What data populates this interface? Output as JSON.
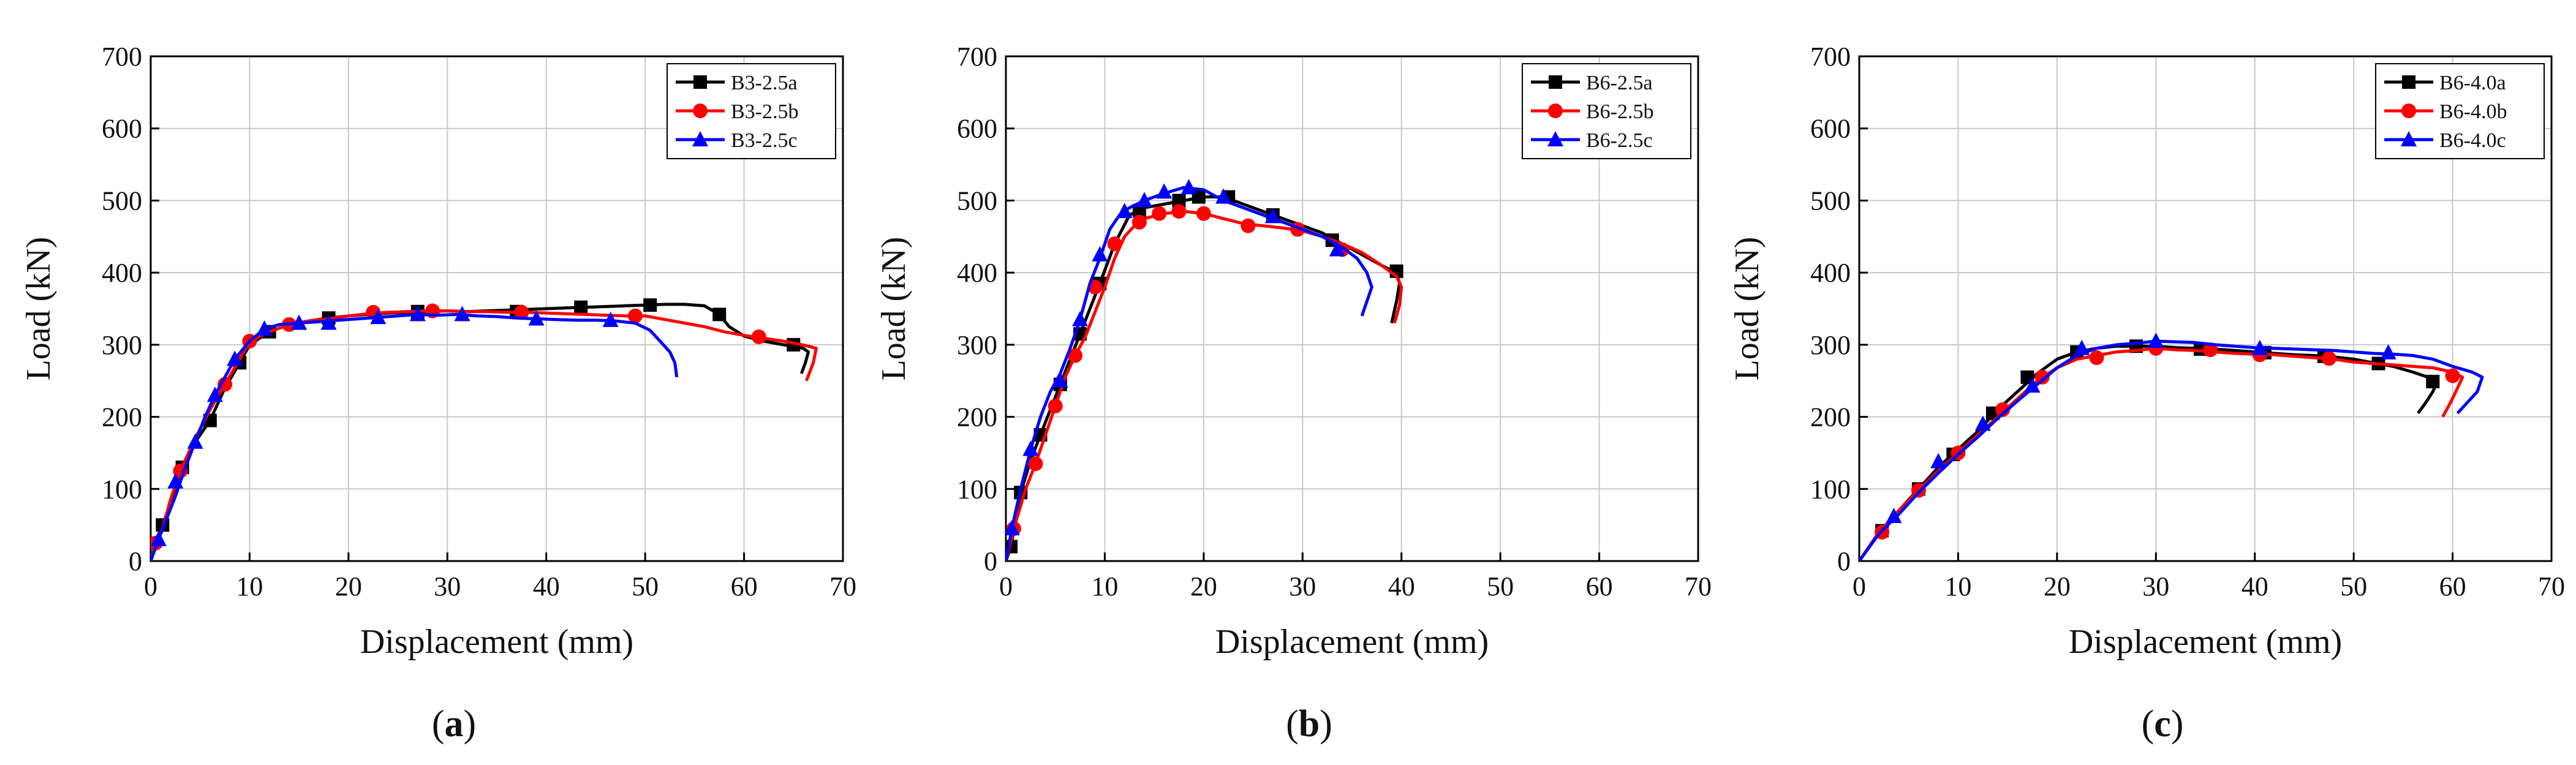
{
  "chart_data": [
    {
      "type": "line",
      "panel": "(a)",
      "panel_letter": "a",
      "xlabel": "Displacement (mm)",
      "ylabel": "Load (kN)",
      "xlim": [
        0,
        70
      ],
      "ylim": [
        0,
        700
      ],
      "xticks": [
        0,
        10,
        20,
        30,
        40,
        50,
        60,
        70
      ],
      "yticks": [
        0,
        100,
        200,
        300,
        400,
        500,
        600,
        700
      ],
      "grid": true,
      "legend_position": "top-right",
      "series": [
        {
          "name": "B3-2.5a",
          "color": "#000000",
          "marker": "square",
          "x": [
            0,
            0.5,
            1.2,
            2,
            3.2,
            4.5,
            6,
            7.5,
            9,
            10,
            12,
            14,
            16,
            18,
            20,
            22,
            24,
            26,
            28,
            30,
            32,
            34,
            36,
            38,
            40,
            42,
            44,
            46,
            48,
            50,
            52,
            54,
            56,
            57.5,
            58.5,
            60,
            62,
            64,
            65,
            66,
            66.5,
            66.2,
            65.8
          ],
          "y": [
            0,
            25,
            50,
            80,
            130,
            165,
            195,
            240,
            275,
            300,
            318,
            328,
            333,
            337,
            340,
            342,
            344,
            345,
            346,
            347,
            346,
            347,
            348,
            349,
            350,
            351,
            352,
            353,
            354,
            355,
            356,
            356,
            354,
            342,
            325,
            312,
            305,
            300,
            298,
            295,
            290,
            275,
            260
          ],
          "markers_x": [
            1.2,
            3.2,
            6,
            9,
            12,
            18,
            27,
            37,
            43.5,
            50.5,
            57.5,
            65
          ],
          "markers_y": [
            50,
            130,
            195,
            275,
            318,
            337,
            346,
            346,
            352,
            355,
            342,
            300
          ]
        },
        {
          "name": "B3-2.5b",
          "color": "#ff0000",
          "marker": "circle",
          "x": [
            0,
            0.5,
            1.2,
            2,
            3,
            4.5,
            6,
            7.5,
            9,
            10,
            12,
            14,
            16,
            18,
            20,
            22,
            24,
            26,
            28,
            30,
            32,
            34,
            36,
            38,
            40,
            42,
            44,
            46,
            48,
            50,
            52,
            54,
            56,
            58,
            60,
            62,
            64,
            65.5,
            66.5,
            67.3,
            67,
            66.3
          ],
          "y": [
            0,
            25,
            45,
            85,
            125,
            170,
            210,
            245,
            280,
            305,
            318,
            328,
            333,
            336,
            340,
            343,
            345,
            346,
            347,
            347,
            346,
            346,
            345,
            345,
            344,
            343,
            342,
            341,
            340,
            340,
            335,
            330,
            325,
            318,
            313,
            309,
            305,
            301,
            298,
            295,
            275,
            250
          ],
          "markers_x": [
            0.5,
            3,
            7.5,
            10,
            14,
            22.5,
            28.5,
            37.5,
            49,
            61.5
          ],
          "markers_y": [
            25,
            125,
            245,
            305,
            328,
            345,
            347,
            345,
            340,
            311
          ]
        },
        {
          "name": "B3-2.5c",
          "color": "#0000ff",
          "marker": "triangle",
          "x": [
            0,
            0.8,
            1.5,
            2.5,
            3.5,
            4.5,
            5.5,
            6.5,
            7.5,
            8.5,
            10,
            11.5,
            13,
            15,
            17,
            19,
            21,
            23,
            25,
            27,
            29,
            31,
            33,
            35,
            37,
            39,
            41,
            43,
            45,
            47,
            49,
            50.5,
            51.5,
            52.5,
            53,
            53.2
          ],
          "y": [
            0,
            30,
            55,
            90,
            130,
            165,
            200,
            230,
            255,
            280,
            305,
            322,
            328,
            330,
            332,
            334,
            336,
            338,
            340,
            342,
            341,
            342,
            340,
            339,
            337,
            336,
            335,
            334,
            334,
            333,
            330,
            320,
            305,
            290,
            275,
            255
          ],
          "markers_x": [
            0.8,
            2.5,
            4.5,
            6.5,
            8.5,
            11.5,
            15,
            18,
            23,
            27,
            31.5,
            39,
            46.5
          ],
          "markers_y": [
            30,
            110,
            165,
            230,
            280,
            322,
            330,
            330,
            338,
            342,
            342,
            336,
            334
          ]
        }
      ]
    },
    {
      "type": "line",
      "panel": "(b)",
      "panel_letter": "b",
      "xlabel": "Displacement (mm)",
      "ylabel": "Load (kN)",
      "xlim": [
        0,
        70
      ],
      "ylim": [
        0,
        700
      ],
      "xticks": [
        0,
        10,
        20,
        30,
        40,
        50,
        60,
        70
      ],
      "yticks": [
        0,
        100,
        200,
        300,
        400,
        500,
        600,
        700
      ],
      "grid": true,
      "legend_position": "top-right",
      "series": [
        {
          "name": "B6-2.5a",
          "color": "#000000",
          "marker": "square",
          "x": [
            0,
            0.5,
            1.5,
            2.5,
            3.5,
            4.5,
            5.5,
            6.5,
            7.5,
            8.5,
            9.5,
            11,
            12.5,
            14,
            16,
            18,
            20,
            22,
            24,
            26,
            28,
            30,
            32,
            34,
            36,
            38,
            39.5,
            39.8,
            39.5,
            39
          ],
          "y": [
            0,
            20,
            95,
            140,
            175,
            210,
            245,
            280,
            315,
            350,
            385,
            440,
            480,
            490,
            495,
            500,
            505,
            505,
            495,
            485,
            475,
            465,
            455,
            440,
            425,
            410,
            400,
            385,
            360,
            330
          ],
          "markers_x": [
            0.5,
            1.5,
            3.5,
            5.5,
            7.5,
            9.5,
            13.5,
            17.5,
            19.5,
            22.5,
            27,
            33,
            39.5
          ],
          "markers_y": [
            20,
            95,
            175,
            245,
            315,
            385,
            486,
            500,
            505,
            505,
            480,
            445,
            402
          ]
        },
        {
          "name": "B6-2.5b",
          "color": "#ff0000",
          "marker": "circle",
          "x": [
            0,
            0.8,
            2,
            3,
            4,
            5,
            6,
            7,
            8,
            9,
            10,
            11,
            12,
            13,
            14,
            16,
            18,
            20,
            22,
            24,
            26,
            28,
            30,
            32,
            34,
            36,
            38,
            39.5,
            40,
            39.8,
            39.3
          ],
          "y": [
            0,
            45,
            100,
            135,
            175,
            215,
            255,
            285,
            310,
            345,
            380,
            420,
            450,
            465,
            475,
            482,
            485,
            482,
            475,
            468,
            465,
            462,
            458,
            450,
            440,
            428,
            410,
            395,
            380,
            355,
            330
          ],
          "markers_x": [
            0.8,
            3,
            5,
            7,
            9,
            11,
            13.5,
            15.5,
            17.5,
            20,
            24.5,
            29.5,
            34
          ],
          "markers_y": [
            45,
            135,
            215,
            285,
            380,
            440,
            470,
            482,
            485,
            482,
            465,
            460,
            432
          ]
        },
        {
          "name": "B6-2.5c",
          "color": "#0000ff",
          "marker": "triangle",
          "x": [
            0,
            0.6,
            1.5,
            2.5,
            3.5,
            4.5,
            5.5,
            6.5,
            7.5,
            8.5,
            9.5,
            10.5,
            11.5,
            12.5,
            14,
            16,
            18,
            20,
            22,
            24,
            26,
            28,
            30,
            32,
            34,
            35.5,
            36.5,
            37,
            36.5,
            36
          ],
          "y": [
            0,
            45,
            100,
            155,
            200,
            235,
            260,
            295,
            335,
            385,
            420,
            460,
            480,
            490,
            500,
            510,
            518,
            515,
            500,
            490,
            480,
            470,
            460,
            450,
            435,
            420,
            400,
            380,
            360,
            340
          ],
          "markers_x": [
            0.6,
            2.5,
            5.5,
            7.5,
            9.5,
            12,
            14,
            16,
            18.5,
            22,
            27,
            33.5
          ],
          "markers_y": [
            45,
            155,
            250,
            335,
            425,
            485,
            500,
            512,
            518,
            505,
            478,
            432
          ]
        }
      ]
    },
    {
      "type": "line",
      "panel": "(c)",
      "panel_letter": "c",
      "xlabel": "Displacement (mm)",
      "ylabel": "Load (kN)",
      "xlim": [
        0,
        70
      ],
      "ylim": [
        0,
        700
      ],
      "xticks": [
        0,
        10,
        20,
        30,
        40,
        50,
        60,
        70
      ],
      "yticks": [
        0,
        100,
        200,
        300,
        400,
        500,
        600,
        700
      ],
      "grid": true,
      "legend_position": "top-right",
      "series": [
        {
          "name": "B6-4.0a",
          "color": "#000000",
          "marker": "square",
          "x": [
            0,
            2,
            4,
            6,
            8,
            10,
            12,
            14,
            16,
            18,
            20,
            22,
            24,
            26,
            28,
            30,
            32,
            34,
            36,
            38,
            40,
            42,
            44,
            46,
            48,
            50,
            52,
            54,
            56,
            57.5,
            58.5,
            58,
            57.3,
            56.5
          ],
          "y": [
            0,
            40,
            70,
            100,
            130,
            155,
            180,
            210,
            235,
            260,
            280,
            290,
            295,
            298,
            298,
            298,
            296,
            295,
            294,
            292,
            290,
            288,
            286,
            285,
            283,
            280,
            275,
            270,
            262,
            255,
            250,
            235,
            220,
            205
          ],
          "markers_x": [
            2.3,
            6,
            9.5,
            13.5,
            17,
            22,
            28,
            34.5,
            41,
            47,
            52.5,
            58
          ],
          "markers_y": [
            42,
            100,
            148,
            205,
            255,
            290,
            298,
            294,
            289,
            284,
            274,
            249
          ]
        },
        {
          "name": "B6-4.0b",
          "color": "#ff0000",
          "marker": "circle",
          "x": [
            0,
            2,
            4,
            6,
            8,
            10,
            12,
            14,
            16,
            18,
            20,
            22,
            24,
            26,
            28,
            30,
            32,
            34,
            36,
            38,
            40,
            42,
            44,
            46,
            48,
            50,
            52,
            54,
            56,
            58,
            60,
            61,
            60.5,
            59.8,
            59
          ],
          "y": [
            0,
            40,
            70,
            98,
            125,
            150,
            175,
            200,
            225,
            250,
            268,
            280,
            285,
            290,
            292,
            295,
            293,
            292,
            290,
            288,
            287,
            286,
            284,
            282,
            280,
            276,
            274,
            272,
            270,
            268,
            262,
            255,
            240,
            220,
            200
          ],
          "markers_x": [
            2.3,
            6,
            10,
            14.5,
            18.5,
            24,
            30,
            35.5,
            40.5,
            47.5,
            60
          ],
          "markers_y": [
            40,
            98,
            150,
            210,
            255,
            282,
            295,
            293,
            286,
            281,
            257
          ]
        },
        {
          "name": "B6-4.0c",
          "color": "#0000ff",
          "marker": "triangle",
          "x": [
            0,
            2,
            4,
            6,
            8,
            10,
            12,
            14,
            16,
            18,
            20,
            22,
            24,
            26,
            28,
            30,
            32,
            34,
            36,
            38,
            40,
            42,
            44,
            46,
            48,
            50,
            52,
            54,
            56,
            58,
            60,
            62,
            63,
            62.5,
            61.5,
            60.5
          ],
          "y": [
            0,
            38,
            65,
            95,
            122,
            148,
            172,
            198,
            222,
            245,
            268,
            285,
            295,
            300,
            302,
            305,
            304,
            303,
            300,
            298,
            296,
            295,
            294,
            293,
            292,
            290,
            288,
            287,
            285,
            280,
            270,
            262,
            255,
            235,
            220,
            205
          ],
          "markers_x": [
            3.5,
            8,
            12.5,
            17.5,
            22.5,
            30,
            40.5,
            53.5
          ],
          "markers_y": [
            62,
            138,
            190,
            243,
            295,
            305,
            295,
            289
          ]
        }
      ]
    }
  ]
}
